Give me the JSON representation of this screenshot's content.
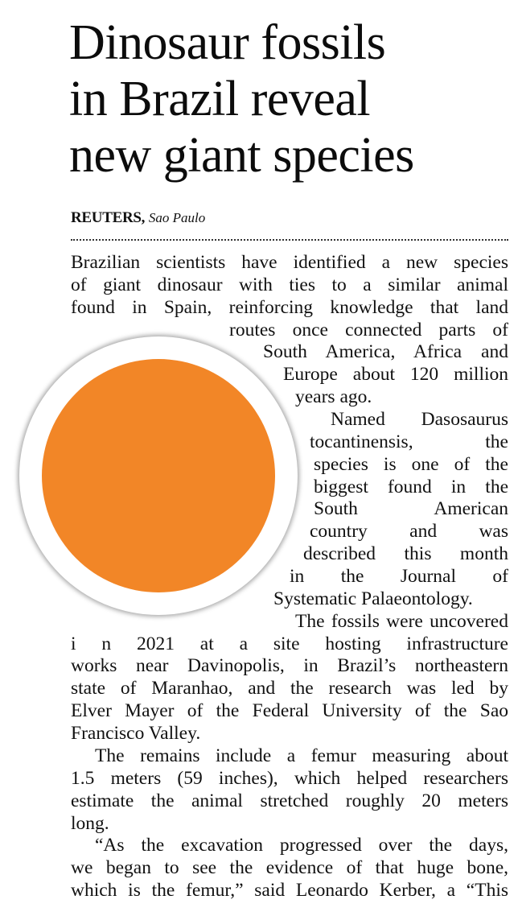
{
  "article": {
    "headline_lines": [
      "Dinosaur fossils",
      "in Brazil reveal",
      "new giant species"
    ],
    "byline": {
      "agency": "REUTERS,",
      "place": "Sao Paulo"
    },
    "image_color": "#F28627",
    "body_lines": [
      "Brazilian scientists have identified a new species",
      "of giant dinosaur with ties to a similar animal",
      "found in Spain, reinforcing knowledge that land",
      "routes once connected parts of",
      "South America, Africa and",
      "Europe about 120 million",
      "years ago.",
      "Named Dasosaurus",
      "tocantinensis, the",
      "species is one of the",
      "biggest found in the",
      "South American",
      "country and was",
      "described this month",
      "in the Journal of",
      "Systematic Palaeontology.",
      "The fossils were uncovered",
      "i n 2021 at a site hosting infrastructure",
      "works near Davinopolis, in Brazil’s northeastern",
      "state of Maranhao, and the research was led by",
      "Elver Mayer of the Federal University of the Sao",
      "Francisco Valley.",
      "The remains include a femur measuring about",
      "1.5 meters (59 inches), which helped researchers",
      "estimate the animal stretched roughly 20 meters",
      "long.",
      "“As the excavation progressed over the days,",
      "we began to see the evidence of that huge bone,",
      "which is the femur,” said Leonardo Kerber, a “This"
    ]
  }
}
